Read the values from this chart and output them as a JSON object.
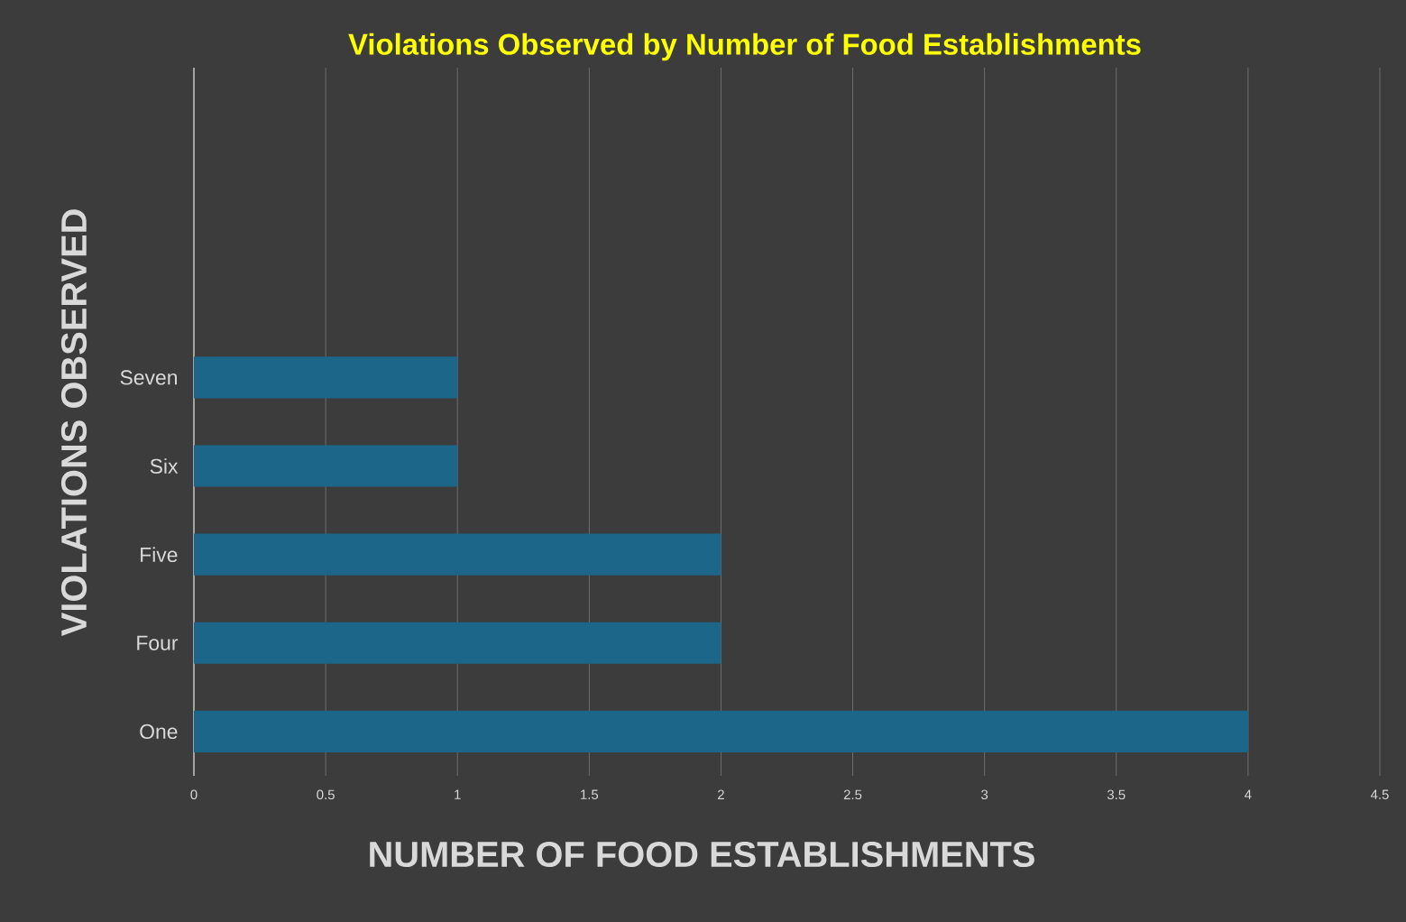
{
  "chart_data": {
    "type": "bar",
    "orientation": "horizontal",
    "title": "Violations Observed by Number of Food Establishments",
    "xlabel": "NUMBER OF FOOD ESTABLISHMENTS",
    "ylabel": "VIOLATIONS OBSERVED",
    "categories": [
      "Seven",
      "Six",
      "Five",
      "Four",
      "One"
    ],
    "values": [
      1,
      1,
      2,
      2,
      4
    ],
    "color": "#1b6689",
    "xlim": [
      0,
      4.5
    ],
    "xticks": [
      0,
      0.5,
      1,
      1.5,
      2,
      2.5,
      3,
      3.5,
      4,
      4.5
    ],
    "grid": "x"
  }
}
